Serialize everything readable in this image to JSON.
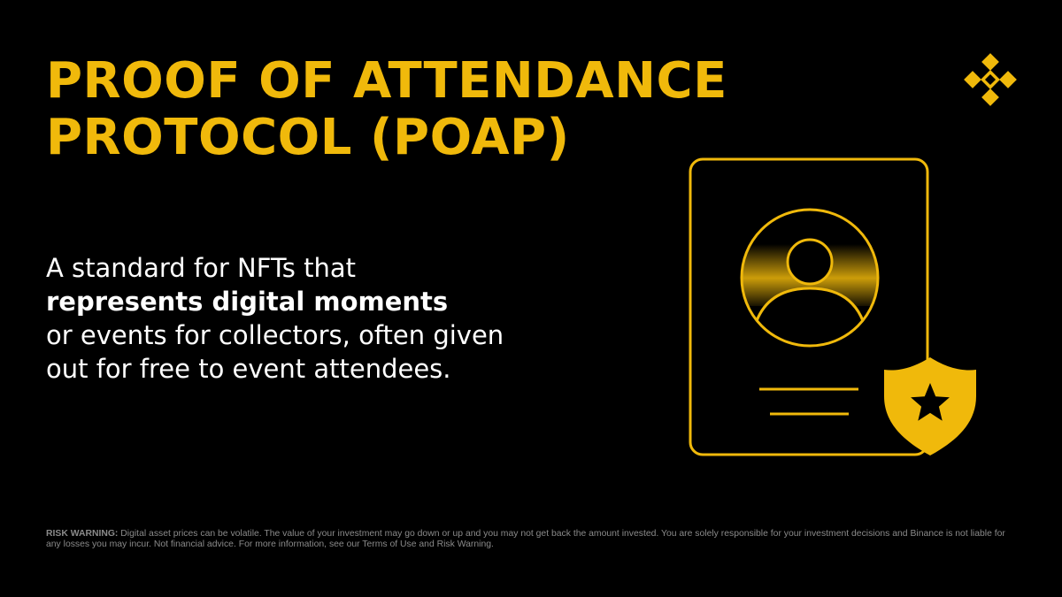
{
  "colors": {
    "accent": "#F0B90B",
    "background": "#000000",
    "text": "#FFFFFF",
    "muted": "#8A8A8A"
  },
  "title": {
    "line1": "PROOF OF ATTENDANCE",
    "line2": "PROTOCOL (POAP)"
  },
  "description": {
    "line1": "A standard for NFTs that",
    "line2_bold": "represents digital moments",
    "line3": "or events for collectors, often given",
    "line4": "out for free to event attendees."
  },
  "logo": {
    "icon": "binance-logo-icon"
  },
  "illustration": {
    "icons": [
      "certificate-card-icon",
      "avatar-icon",
      "shield-star-icon"
    ]
  },
  "risk_warning": {
    "label": "RISK WARNING:",
    "text": "Digital asset prices can be volatile. The value of your investment may go down or up and you may not get back the amount invested. You are solely responsible for your investment decisions and Binance is not liable for any losses you may incur. Not financial advice. For more information, see our Terms of Use and Risk Warning."
  }
}
